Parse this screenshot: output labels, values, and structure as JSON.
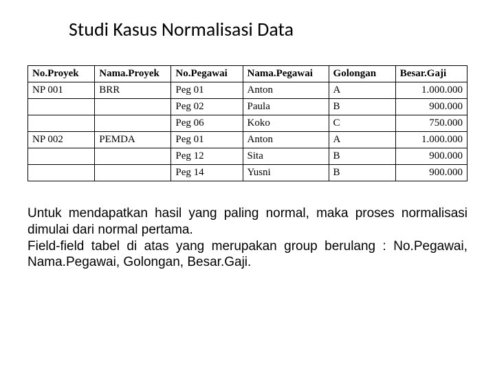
{
  "title": "Studi Kasus Normalisasi Data",
  "table": {
    "columns": [
      "No.Proyek",
      "Nama.Proyek",
      "No.Pegawai",
      "Nama.Pegawai",
      "Golongan",
      "Besar.Gaji"
    ],
    "col_widths_pct": [
      14,
      16,
      15,
      18,
      14,
      15
    ],
    "rows": [
      [
        "NP 001",
        "BRR",
        "Peg 01",
        "Anton",
        "A",
        "1.000.000"
      ],
      [
        "",
        "",
        "Peg 02",
        "Paula",
        "B",
        "900.000"
      ],
      [
        "",
        "",
        "Peg 06",
        "Koko",
        "C",
        "750.000"
      ],
      [
        "NP 002",
        "PEMDA",
        "Peg 01",
        "Anton",
        "A",
        "1.000.000"
      ],
      [
        "",
        "",
        "Peg 12",
        "Sita",
        "B",
        "900.000"
      ],
      [
        "",
        "",
        "Peg 14",
        "Yusni",
        "B",
        "900.000"
      ]
    ],
    "numeric_cols": [
      5
    ],
    "border_color": "#000000",
    "header_bg": "#ffffff",
    "font_family": "Times New Roman",
    "font_size_pt": 11
  },
  "paragraphs": [
    "Untuk mendapatkan hasil yang paling normal, maka proses normalisasi dimulai dari normal pertama.",
    "Field-field tabel di atas yang merupakan group berulang : No.Pegawai, Nama.Pegawai, Golongan, Besar.Gaji."
  ],
  "colors": {
    "background": "#ffffff",
    "text": "#000000"
  }
}
